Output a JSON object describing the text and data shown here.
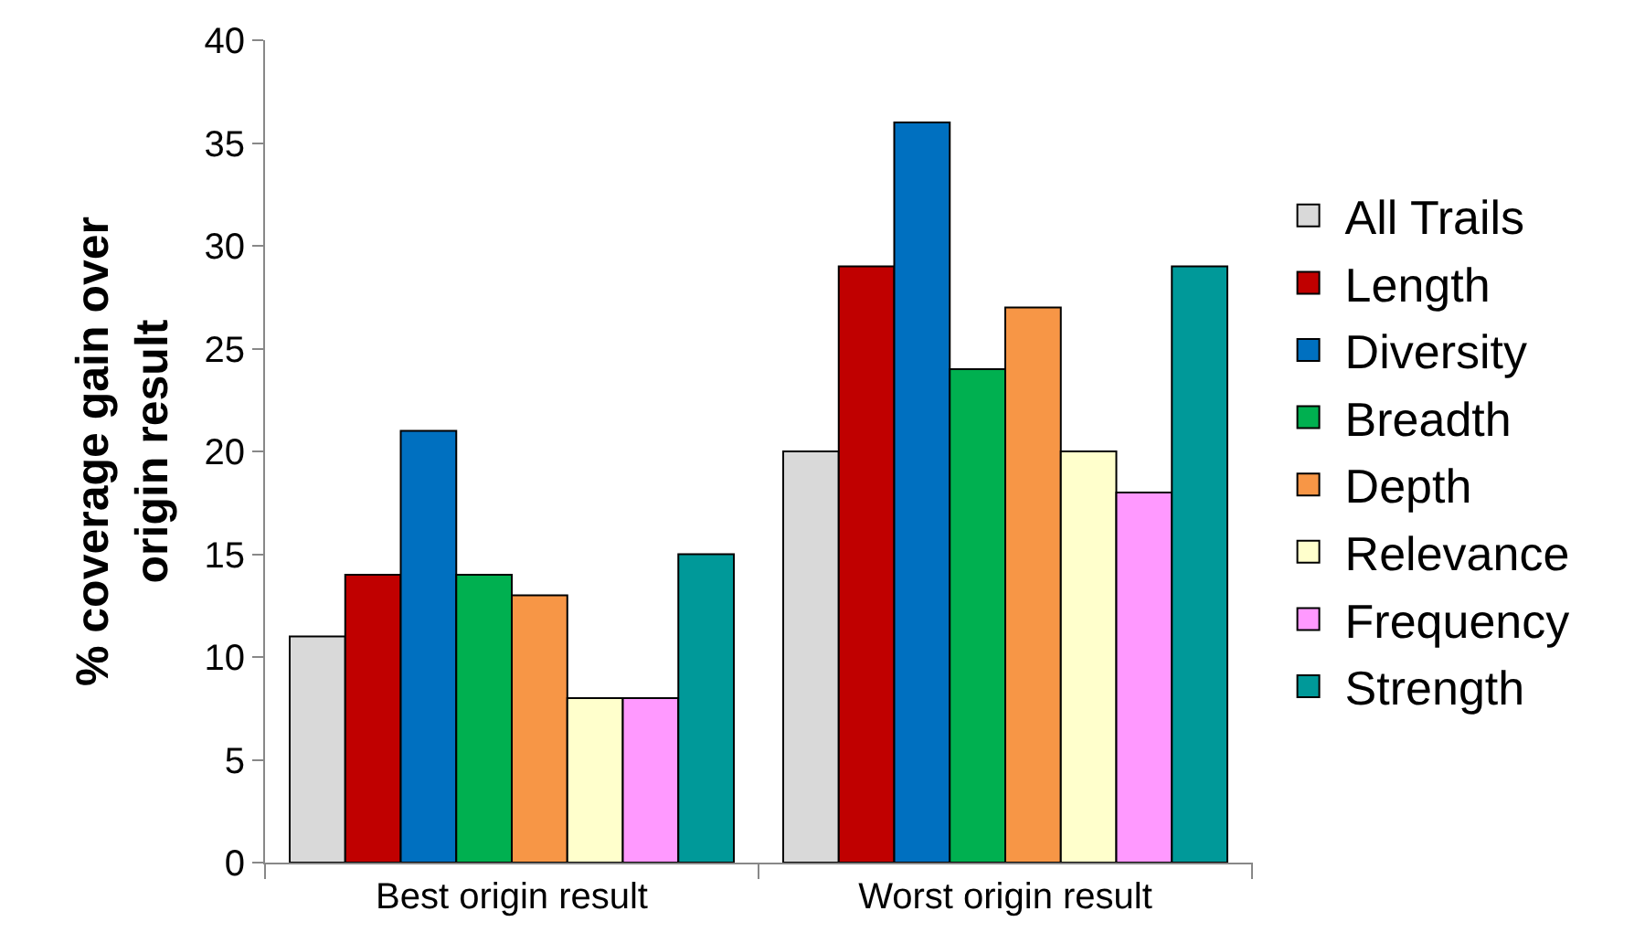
{
  "chart_data": {
    "type": "bar",
    "ylabel": "% coverage gain over origin result",
    "categories": [
      "Best origin result",
      "Worst origin result"
    ],
    "series": [
      {
        "name": "All Trails",
        "color": "#d9d9d9",
        "values": [
          11,
          20
        ]
      },
      {
        "name": "Length",
        "color": "#c00000",
        "values": [
          14,
          29
        ]
      },
      {
        "name": "Diversity",
        "color": "#0070c0",
        "values": [
          21,
          36
        ]
      },
      {
        "name": "Breadth",
        "color": "#00b050",
        "values": [
          14,
          24
        ]
      },
      {
        "name": "Depth",
        "color": "#f79646",
        "values": [
          13,
          27
        ]
      },
      {
        "name": "Relevance",
        "color": "#ffffcc",
        "values": [
          8,
          20
        ]
      },
      {
        "name": "Frequency",
        "color": "#ff99ff",
        "values": [
          8,
          18
        ]
      },
      {
        "name": "Strength",
        "color": "#009999",
        "values": [
          15,
          29
        ]
      }
    ],
    "ylim": [
      0,
      40
    ],
    "yticks": [
      0,
      5,
      10,
      15,
      20,
      25,
      30,
      35,
      40
    ],
    "grid": false,
    "legend": "right"
  }
}
